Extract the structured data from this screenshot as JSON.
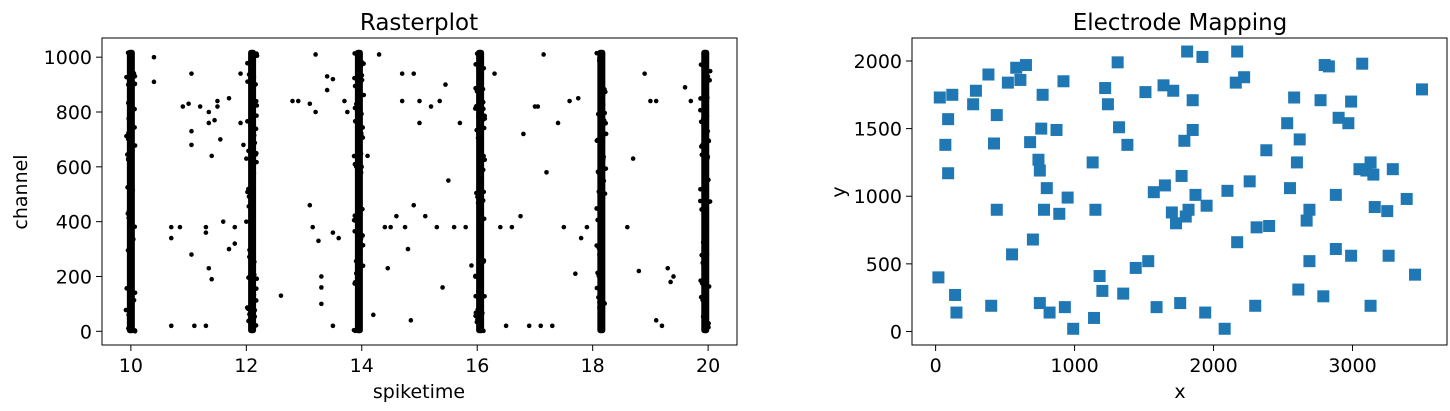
{
  "chart_data": [
    {
      "type": "scatter",
      "title": "Rasterplot",
      "xlabel": "spiketime",
      "ylabel": "channel",
      "xlim": [
        9.5,
        20.5
      ],
      "ylim": [
        -50,
        1070
      ],
      "xticks": [
        10,
        12,
        14,
        16,
        18,
        20
      ],
      "yticks": [
        0,
        200,
        400,
        600,
        800,
        1000
      ],
      "grid": false,
      "marker": {
        "shape": "circle",
        "color": "#000000"
      },
      "bursts": [
        {
          "time": 10.0,
          "channel_range": [
            0,
            1020
          ]
        },
        {
          "time": 12.1,
          "channel_range": [
            0,
            1020
          ]
        },
        {
          "time": 13.95,
          "channel_range": [
            0,
            1020
          ]
        },
        {
          "time": 16.05,
          "channel_range": [
            0,
            1020
          ]
        },
        {
          "time": 18.15,
          "channel_range": [
            0,
            1020
          ]
        },
        {
          "time": 19.95,
          "channel_range": [
            0,
            1020
          ]
        }
      ],
      "scattered_spikes": [
        [
          10.4,
          1000
        ],
        [
          10.4,
          910
        ],
        [
          10.7,
          380
        ],
        [
          10.7,
          340
        ],
        [
          10.7,
          20
        ],
        [
          10.85,
          380
        ],
        [
          10.9,
          820
        ],
        [
          11.0,
          830
        ],
        [
          11.05,
          940
        ],
        [
          11.05,
          730
        ],
        [
          11.05,
          680
        ],
        [
          11.05,
          280
        ],
        [
          11.1,
          20
        ],
        [
          11.2,
          820
        ],
        [
          11.3,
          380
        ],
        [
          11.3,
          360
        ],
        [
          11.3,
          20
        ],
        [
          11.35,
          230
        ],
        [
          11.35,
          760
        ],
        [
          11.35,
          800
        ],
        [
          11.4,
          640
        ],
        [
          11.4,
          190
        ],
        [
          11.45,
          770
        ],
        [
          11.5,
          840
        ],
        [
          11.5,
          820
        ],
        [
          11.55,
          700
        ],
        [
          11.6,
          400
        ],
        [
          11.7,
          850
        ],
        [
          11.7,
          300
        ],
        [
          11.8,
          380
        ],
        [
          11.8,
          320
        ],
        [
          11.9,
          940
        ],
        [
          11.9,
          760
        ],
        [
          11.95,
          680
        ],
        [
          12.0,
          630
        ],
        [
          12.0,
          400
        ],
        [
          12.6,
          130
        ],
        [
          12.8,
          840
        ],
        [
          12.9,
          840
        ],
        [
          13.1,
          830
        ],
        [
          13.1,
          460
        ],
        [
          13.15,
          380
        ],
        [
          13.2,
          1010
        ],
        [
          13.2,
          800
        ],
        [
          13.25,
          330
        ],
        [
          13.3,
          200
        ],
        [
          13.3,
          160
        ],
        [
          13.3,
          100
        ],
        [
          13.4,
          930
        ],
        [
          13.4,
          880
        ],
        [
          13.5,
          920
        ],
        [
          13.5,
          360
        ],
        [
          13.5,
          20
        ],
        [
          13.6,
          340
        ],
        [
          13.7,
          840
        ],
        [
          13.75,
          800
        ],
        [
          14.1,
          640
        ],
        [
          14.2,
          60
        ],
        [
          14.3,
          1010
        ],
        [
          14.4,
          380
        ],
        [
          14.45,
          230
        ],
        [
          14.5,
          380
        ],
        [
          14.6,
          420
        ],
        [
          14.7,
          940
        ],
        [
          14.7,
          840
        ],
        [
          14.75,
          380
        ],
        [
          14.8,
          300
        ],
        [
          14.85,
          40
        ],
        [
          14.9,
          940
        ],
        [
          14.9,
          460
        ],
        [
          15.0,
          840
        ],
        [
          15.0,
          760
        ],
        [
          15.1,
          420
        ],
        [
          15.2,
          820
        ],
        [
          15.3,
          380
        ],
        [
          15.35,
          840
        ],
        [
          15.4,
          160
        ],
        [
          15.45,
          900
        ],
        [
          15.5,
          550
        ],
        [
          15.6,
          380
        ],
        [
          15.7,
          760
        ],
        [
          15.8,
          380
        ],
        [
          15.9,
          240
        ],
        [
          16.3,
          940
        ],
        [
          16.4,
          380
        ],
        [
          16.5,
          20
        ],
        [
          16.6,
          380
        ],
        [
          16.75,
          420
        ],
        [
          16.8,
          720
        ],
        [
          16.9,
          20
        ],
        [
          17.0,
          820
        ],
        [
          17.05,
          820
        ],
        [
          17.1,
          20
        ],
        [
          17.15,
          1010
        ],
        [
          17.2,
          580
        ],
        [
          17.3,
          20
        ],
        [
          17.4,
          760
        ],
        [
          17.5,
          380
        ],
        [
          17.6,
          840
        ],
        [
          17.7,
          210
        ],
        [
          17.75,
          850
        ],
        [
          17.8,
          340
        ],
        [
          17.9,
          380
        ],
        [
          18.6,
          380
        ],
        [
          18.7,
          630
        ],
        [
          18.8,
          220
        ],
        [
          18.9,
          940
        ],
        [
          19.0,
          840
        ],
        [
          19.1,
          840
        ],
        [
          19.1,
          40
        ],
        [
          19.2,
          20
        ],
        [
          19.3,
          230
        ],
        [
          19.35,
          180
        ],
        [
          19.4,
          200
        ],
        [
          19.6,
          890
        ],
        [
          19.7,
          840
        ]
      ]
    },
    {
      "type": "scatter",
      "title": "Electrode Mapping",
      "xlabel": "x",
      "ylabel": "y",
      "xlim": [
        -170,
        3680
      ],
      "ylim": [
        -100,
        2170
      ],
      "xticks": [
        0,
        1000,
        2000,
        3000
      ],
      "yticks": [
        0,
        500,
        1000,
        1500,
        2000
      ],
      "grid": false,
      "marker": {
        "shape": "square",
        "color": "#1f77b4"
      },
      "points": [
        [
          20,
          400
        ],
        [
          30,
          1730
        ],
        [
          70,
          1380
        ],
        [
          90,
          1570
        ],
        [
          90,
          1170
        ],
        [
          120,
          1750
        ],
        [
          140,
          270
        ],
        [
          150,
          140
        ],
        [
          270,
          1680
        ],
        [
          290,
          1780
        ],
        [
          380,
          1900
        ],
        [
          400,
          190
        ],
        [
          420,
          1390
        ],
        [
          440,
          900
        ],
        [
          440,
          1600
        ],
        [
          520,
          1840
        ],
        [
          550,
          570
        ],
        [
          580,
          1950
        ],
        [
          610,
          1860
        ],
        [
          650,
          1970
        ],
        [
          680,
          1400
        ],
        [
          700,
          680
        ],
        [
          740,
          1270
        ],
        [
          750,
          1190
        ],
        [
          750,
          210
        ],
        [
          760,
          1500
        ],
        [
          770,
          1750
        ],
        [
          780,
          900
        ],
        [
          800,
          1060
        ],
        [
          820,
          140
        ],
        [
          870,
          1490
        ],
        [
          890,
          870
        ],
        [
          920,
          1850
        ],
        [
          930,
          180
        ],
        [
          950,
          990
        ],
        [
          990,
          20
        ],
        [
          1130,
          1250
        ],
        [
          1140,
          100
        ],
        [
          1150,
          900
        ],
        [
          1180,
          410
        ],
        [
          1200,
          300
        ],
        [
          1220,
          1800
        ],
        [
          1240,
          1680
        ],
        [
          1310,
          1990
        ],
        [
          1320,
          1510
        ],
        [
          1350,
          280
        ],
        [
          1380,
          1380
        ],
        [
          1440,
          470
        ],
        [
          1510,
          1770
        ],
        [
          1530,
          520
        ],
        [
          1570,
          1030
        ],
        [
          1590,
          180
        ],
        [
          1640,
          1820
        ],
        [
          1650,
          1080
        ],
        [
          1700,
          880
        ],
        [
          1710,
          1780
        ],
        [
          1730,
          800
        ],
        [
          1760,
          210
        ],
        [
          1770,
          1150
        ],
        [
          1790,
          1410
        ],
        [
          1800,
          850
        ],
        [
          1810,
          2070
        ],
        [
          1820,
          900
        ],
        [
          1850,
          1490
        ],
        [
          1850,
          1710
        ],
        [
          1870,
          1010
        ],
        [
          1920,
          2030
        ],
        [
          1940,
          140
        ],
        [
          1950,
          930
        ],
        [
          2080,
          20
        ],
        [
          2100,
          1040
        ],
        [
          2160,
          1840
        ],
        [
          2170,
          2070
        ],
        [
          2170,
          660
        ],
        [
          2220,
          1880
        ],
        [
          2260,
          1110
        ],
        [
          2300,
          190
        ],
        [
          2310,
          770
        ],
        [
          2380,
          1340
        ],
        [
          2400,
          780
        ],
        [
          2530,
          1540
        ],
        [
          2550,
          1060
        ],
        [
          2580,
          1730
        ],
        [
          2600,
          1250
        ],
        [
          2610,
          310
        ],
        [
          2620,
          1420
        ],
        [
          2670,
          820
        ],
        [
          2690,
          900
        ],
        [
          2690,
          520
        ],
        [
          2770,
          1710
        ],
        [
          2790,
          260
        ],
        [
          2800,
          1970
        ],
        [
          2830,
          1960
        ],
        [
          2880,
          610
        ],
        [
          2880,
          1010
        ],
        [
          2900,
          1580
        ],
        [
          2970,
          1540
        ],
        [
          2990,
          1700
        ],
        [
          2990,
          560
        ],
        [
          3050,
          1200
        ],
        [
          3070,
          1980
        ],
        [
          3100,
          1190
        ],
        [
          3130,
          1250
        ],
        [
          3130,
          190
        ],
        [
          3150,
          1160
        ],
        [
          3160,
          920
        ],
        [
          3250,
          890
        ],
        [
          3260,
          560
        ],
        [
          3290,
          1200
        ],
        [
          3390,
          980
        ],
        [
          3450,
          420
        ],
        [
          3500,
          1790
        ]
      ]
    }
  ]
}
